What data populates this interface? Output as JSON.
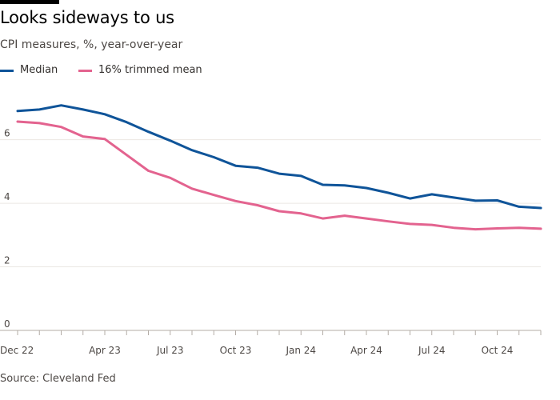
{
  "header": {
    "title": "Looks sideways to us",
    "subtitle": "CPI measures, %, year-over-year"
  },
  "legend": {
    "items": [
      {
        "label": "Median",
        "color": "#0f5499"
      },
      {
        "label": "16% trimmed mean",
        "color": "#e3638f"
      }
    ]
  },
  "footer": {
    "source": "Source: Cleveland Fed"
  },
  "chart_data": {
    "type": "line",
    "title": "Looks sideways to us",
    "subtitle": "CPI measures, %, year-over-year",
    "xlabel": "",
    "ylabel": "",
    "x": [
      "2022-12",
      "2023-01",
      "2023-02",
      "2023-03",
      "2023-04",
      "2023-05",
      "2023-06",
      "2023-07",
      "2023-08",
      "2023-09",
      "2023-10",
      "2023-11",
      "2023-12",
      "2024-01",
      "2024-02",
      "2024-03",
      "2024-04",
      "2024-05",
      "2024-06",
      "2024-07",
      "2024-08",
      "2024-09",
      "2024-10",
      "2024-11",
      "2024-12"
    ],
    "x_tick_labels": [
      {
        "x": "2022-12",
        "label": "Dec 22"
      },
      {
        "x": "2023-04",
        "label": "Apr 23"
      },
      {
        "x": "2023-07",
        "label": "Jul 23"
      },
      {
        "x": "2023-10",
        "label": "Oct 23"
      },
      {
        "x": "2024-01",
        "label": "Jan 24"
      },
      {
        "x": "2024-04",
        "label": "Apr 24"
      },
      {
        "x": "2024-07",
        "label": "Jul 24"
      },
      {
        "x": "2024-10",
        "label": "Oct 24"
      }
    ],
    "y_ticks": [
      0,
      2,
      4,
      6
    ],
    "ylim": [
      0,
      7.5
    ],
    "grid": true,
    "legend_position": "top-left",
    "series": [
      {
        "name": "Median",
        "color": "#0f5499",
        "values": [
          6.9,
          6.95,
          7.08,
          6.95,
          6.8,
          6.55,
          6.25,
          5.97,
          5.67,
          5.45,
          5.18,
          5.12,
          4.93,
          4.86,
          4.58,
          4.56,
          4.48,
          4.33,
          4.15,
          4.28,
          4.18,
          4.08,
          4.09,
          3.89,
          3.85
        ]
      },
      {
        "name": "16% trimmed mean",
        "color": "#e3638f",
        "values": [
          6.57,
          6.52,
          6.4,
          6.1,
          6.02,
          5.52,
          5.02,
          4.8,
          4.46,
          4.26,
          4.07,
          3.94,
          3.75,
          3.68,
          3.52,
          3.61,
          3.52,
          3.43,
          3.35,
          3.32,
          3.23,
          3.18,
          3.21,
          3.23,
          3.2
        ]
      }
    ]
  }
}
